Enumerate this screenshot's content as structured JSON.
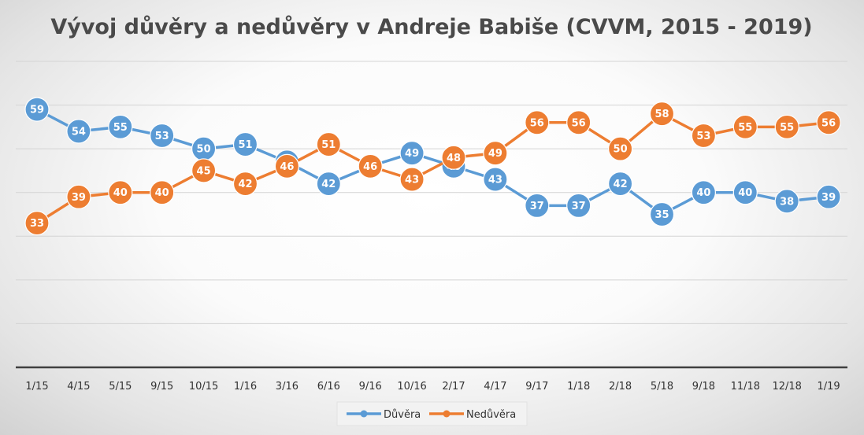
{
  "chart_data": {
    "type": "line",
    "title": "Vývoj důvěry a nedůvěry v Andreje Babiše (CVVM, 2015 - 2019)",
    "categories": [
      "1/15",
      "4/15",
      "5/15",
      "9/15",
      "10/15",
      "1/16",
      "3/16",
      "6/16",
      "9/16",
      "10/16",
      "2/17",
      "4/17",
      "9/17",
      "1/18",
      "2/18",
      "5/18",
      "9/18",
      "11/18",
      "12/18",
      "1/19"
    ],
    "series": [
      {
        "name": "Důvěra",
        "color": "#5b9bd5",
        "values": [
          59,
          54,
          55,
          53,
          50,
          51,
          47,
          42,
          46,
          49,
          46,
          43,
          37,
          37,
          42,
          35,
          40,
          40,
          38,
          39
        ]
      },
      {
        "name": "Nedůvěra",
        "color": "#ed7d31",
        "values": [
          33,
          39,
          40,
          40,
          45,
          42,
          46,
          51,
          46,
          43,
          48,
          49,
          56,
          56,
          50,
          58,
          53,
          55,
          55,
          56
        ]
      }
    ],
    "ylim": [
      0,
      70
    ],
    "grid": true,
    "legend": "bottom"
  }
}
